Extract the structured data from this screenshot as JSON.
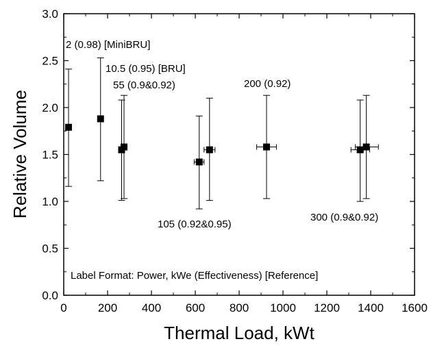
{
  "chart_data": {
    "type": "scatter",
    "xlabel": "Thermal Load, kWt",
    "ylabel": "Relative Volume",
    "xlim": [
      0,
      1600
    ],
    "ylim": [
      0.0,
      3.0
    ],
    "x_ticks": [
      "0",
      "200",
      "400",
      "600",
      "800",
      "1000",
      "1200",
      "1400",
      "1600"
    ],
    "y_ticks": [
      "0.0",
      "0.5",
      "1.0",
      "1.5",
      "2.0",
      "2.5",
      "3.0"
    ],
    "grid": false,
    "marker": "filled-square",
    "points": [
      {
        "x": 22,
        "y": 1.79,
        "y_low": 1.16,
        "y_high": 2.41
      },
      {
        "x": 168,
        "y": 1.88,
        "y_low": 1.22,
        "y_high": 2.53
      },
      {
        "x": 264,
        "y": 1.55,
        "y_low": 1.01,
        "y_high": 2.08
      },
      {
        "x": 275,
        "y": 1.58,
        "y_low": 1.03,
        "y_high": 2.13
      },
      {
        "x": 618,
        "y": 1.42,
        "y_low": 0.92,
        "y_high": 1.91,
        "x_low": 595,
        "x_high": 640
      },
      {
        "x": 665,
        "y": 1.55,
        "y_low": 1.01,
        "y_high": 2.1,
        "x_low": 640,
        "x_high": 690
      },
      {
        "x": 925,
        "y": 1.58,
        "y_low": 1.03,
        "y_high": 2.13,
        "x_low": 880,
        "x_high": 970
      },
      {
        "x": 1352,
        "y": 1.55,
        "y_low": 1.0,
        "y_high": 2.08,
        "x_low": 1310,
        "x_high": 1395
      },
      {
        "x": 1380,
        "y": 1.58,
        "y_low": 1.03,
        "y_high": 2.13,
        "x_low": 1330,
        "x_high": 1435
      }
    ],
    "annotations": [
      "2 (0.98) [MiniBRU]",
      "10.5 (0.95) [BRU]",
      "55 (0.9&0.92)",
      "200 (0.92)",
      "105 (0.92&0.95)",
      "300 (0.9&0.92)",
      "Label Format:  Power, kWe (Effectiveness) [Reference]"
    ]
  }
}
